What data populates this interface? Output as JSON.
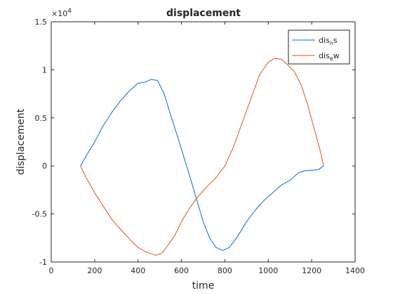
{
  "chart_data": {
    "type": "line",
    "title": "displacement",
    "xlabel": "time",
    "ylabel": "displacement",
    "xlim": [
      0,
      1400
    ],
    "ylim": [
      -10000,
      15000
    ],
    "xticks": [
      0,
      200,
      400,
      600,
      800,
      1000,
      1200,
      1400
    ],
    "yticks": [
      -10000,
      -5000,
      0,
      5000,
      10000,
      15000
    ],
    "ytick_labels": [
      "-1",
      "-0.5",
      "0",
      "0.5",
      "1",
      "1.5"
    ],
    "y_exponent": "×10^4",
    "grid": false,
    "legend_position": "top-right",
    "series": [
      {
        "name": "dis_n s",
        "legend_main": "dis",
        "legend_sub": "n",
        "legend_tail": "s",
        "color": "#0072bd",
        "x": [
          135,
          160,
          200,
          240,
          280,
          320,
          360,
          400,
          430,
          460,
          490,
          520,
          550,
          580,
          610,
          640,
          670,
          700,
          730,
          760,
          790,
          820,
          860,
          900,
          940,
          980,
          1020,
          1060,
          1100,
          1140,
          1170,
          1200,
          1230,
          1255
        ],
        "y": [
          0,
          1000,
          2500,
          4200,
          5600,
          6800,
          7800,
          8600,
          8700,
          9000,
          8900,
          7500,
          5300,
          3200,
          1000,
          -1200,
          -3500,
          -5800,
          -7500,
          -8500,
          -8800,
          -8500,
          -7300,
          -5800,
          -4600,
          -3600,
          -2800,
          -2000,
          -1500,
          -700,
          -500,
          -450,
          -400,
          0
        ]
      },
      {
        "name": "dis_e w",
        "legend_main": "dis",
        "legend_sub": "e",
        "legend_tail": "w",
        "color": "#d95319",
        "x": [
          135,
          160,
          200,
          240,
          280,
          320,
          360,
          400,
          440,
          480,
          510,
          540,
          570,
          600,
          640,
          680,
          720,
          760,
          800,
          840,
          880,
          920,
          960,
          1000,
          1030,
          1060,
          1090,
          1120,
          1150,
          1180,
          1210,
          1240,
          1255
        ],
        "y": [
          0,
          -1200,
          -2800,
          -4200,
          -5600,
          -6600,
          -7600,
          -8500,
          -9000,
          -9300,
          -9100,
          -8200,
          -7200,
          -5800,
          -4300,
          -3100,
          -2100,
          -1200,
          0,
          2000,
          4500,
          7000,
          9500,
          10800,
          11200,
          11100,
          10500,
          9800,
          8500,
          6500,
          4000,
          1500,
          0
        ]
      }
    ]
  }
}
